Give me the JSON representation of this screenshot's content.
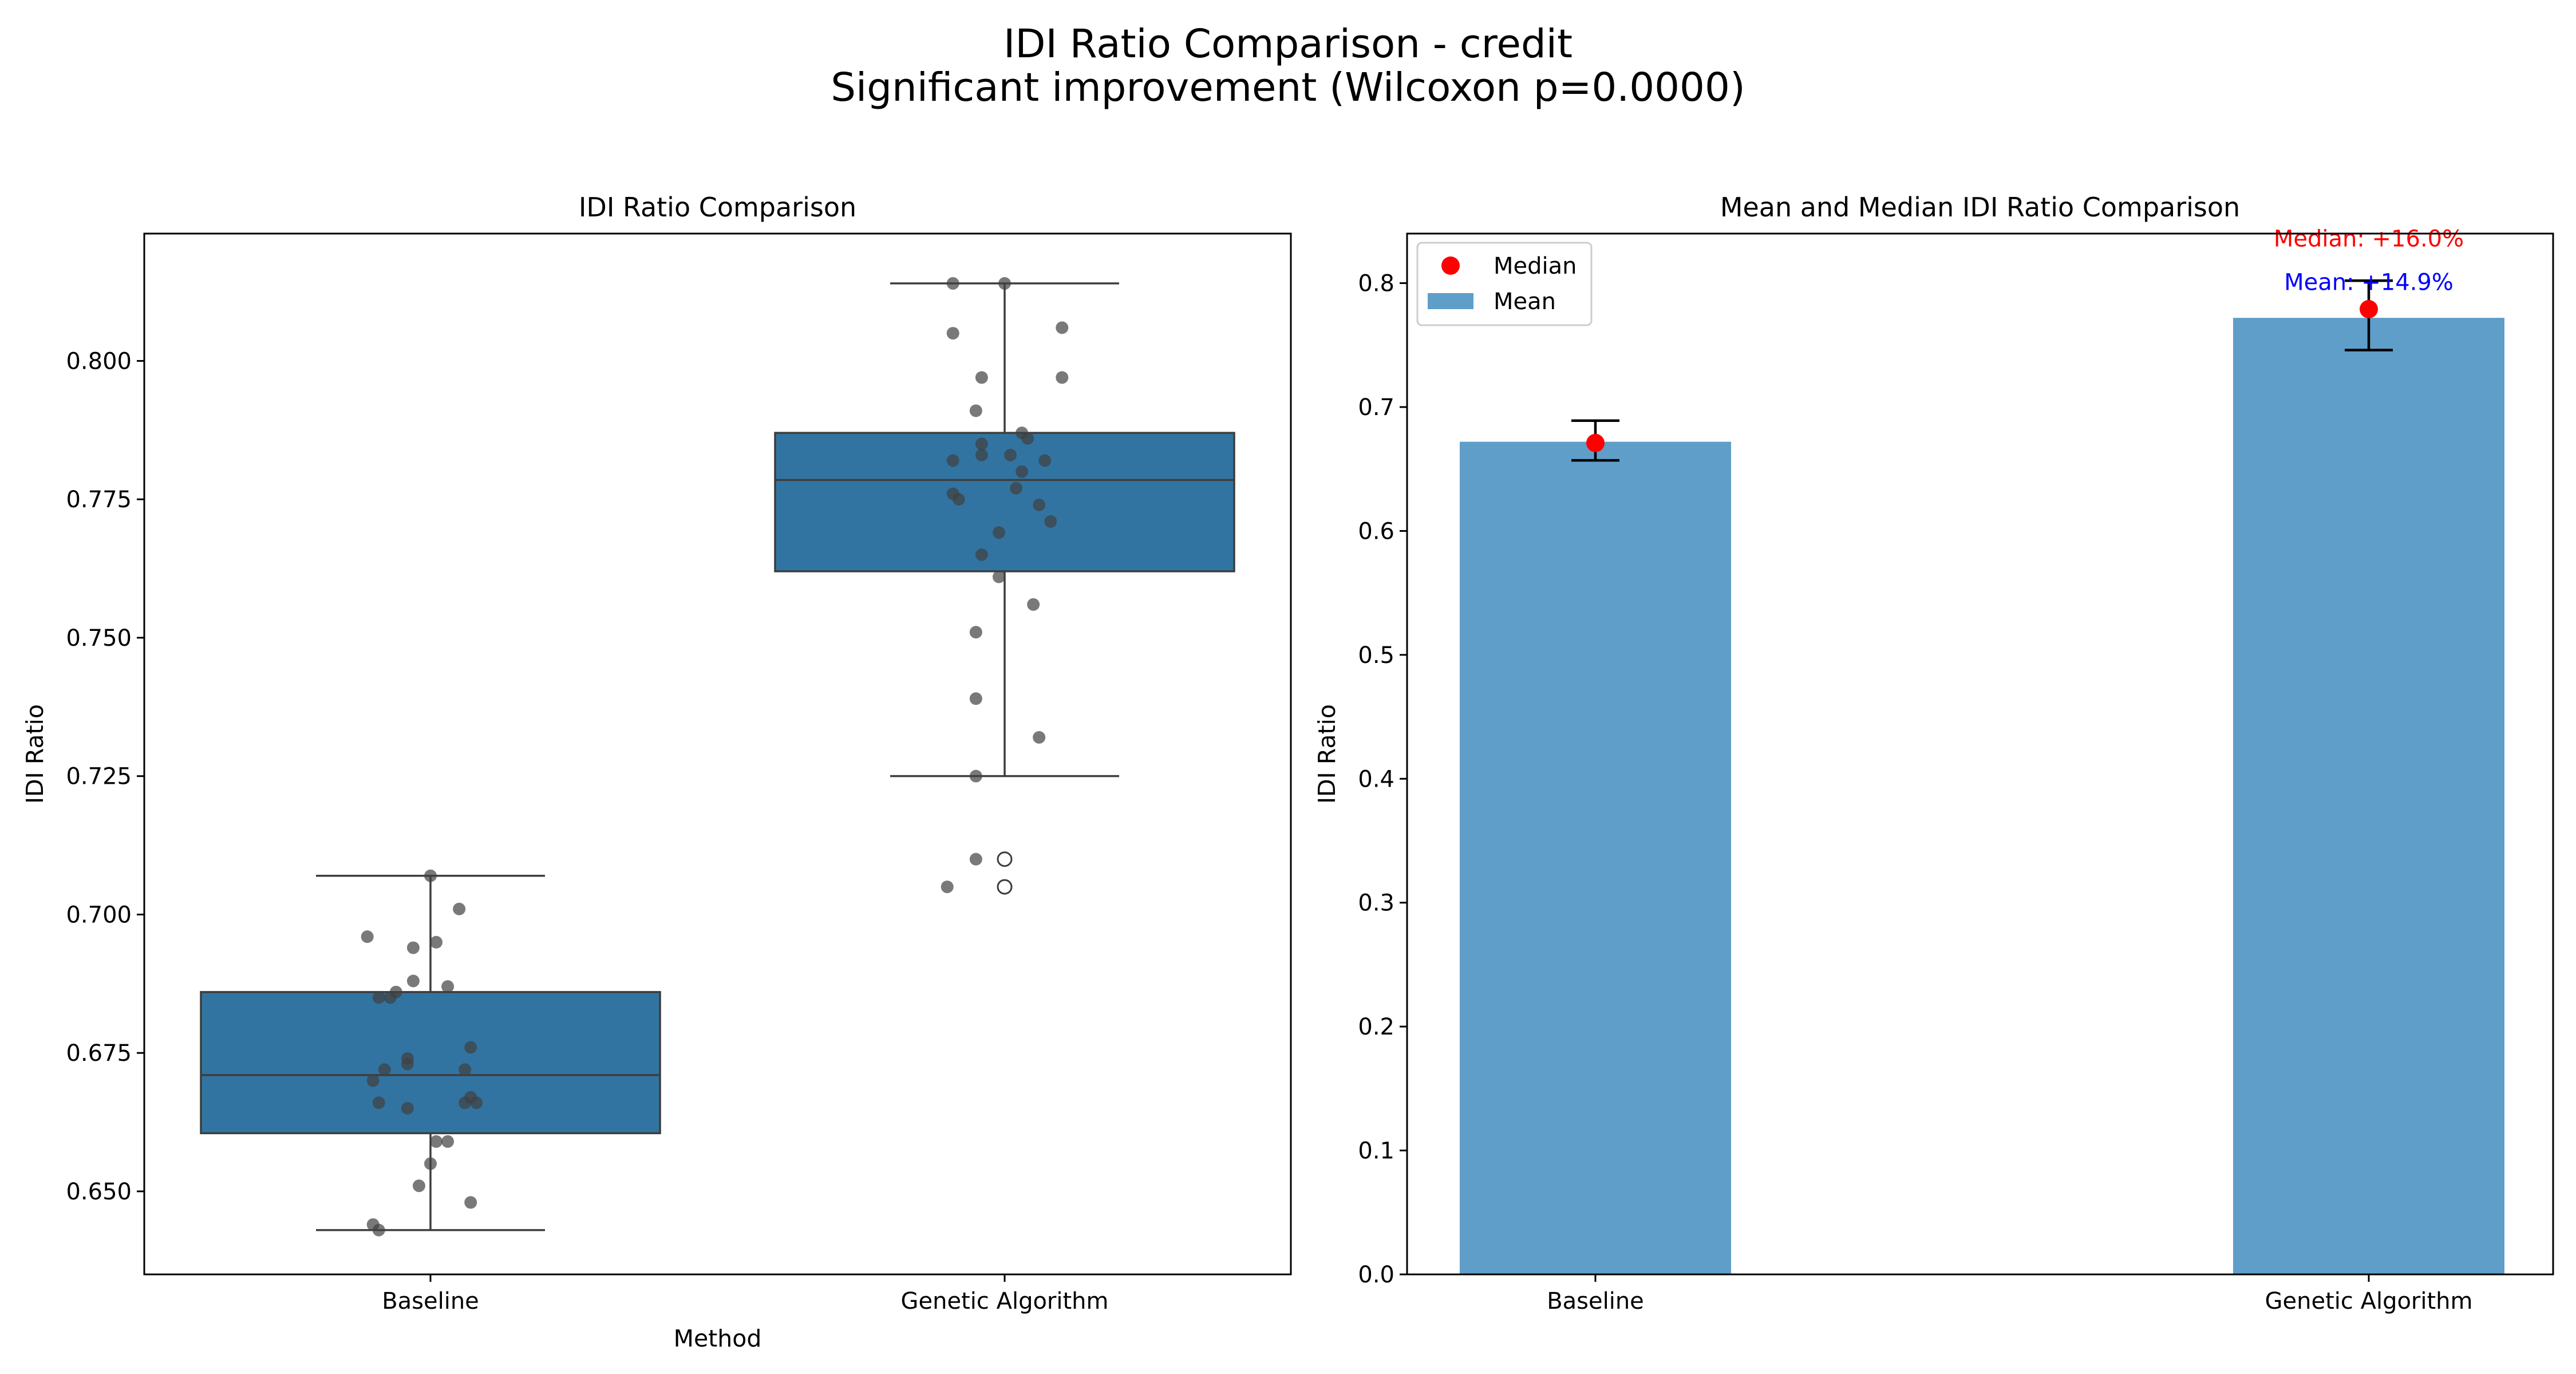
{
  "figure": {
    "suptitle_line1": "IDI Ratio Comparison - credit",
    "suptitle_line2": "Significant improvement (Wilcoxon p=0.0000)"
  },
  "chart_data": [
    {
      "type": "box",
      "title": "IDI Ratio Comparison",
      "xlabel": "Method",
      "ylabel": "IDI Ratio",
      "categories": [
        "Baseline",
        "Genetic Algorithm"
      ],
      "ylim": [
        0.635,
        0.823
      ],
      "yticks": [
        "0.650",
        "0.675",
        "0.700",
        "0.725",
        "0.750",
        "0.775",
        "0.800"
      ],
      "box_color": "#3274a1",
      "point_color": "#404040",
      "boxes": [
        {
          "category": "Baseline",
          "q1": 0.6605,
          "median": 0.671,
          "q3": 0.686,
          "whisker_low": 0.643,
          "whisker_high": 0.707,
          "outliers": [],
          "points": [
            {
              "dx": 0.0,
              "y": 0.707
            },
            {
              "dx": 0.05,
              "y": 0.701
            },
            {
              "dx": -0.11,
              "y": 0.696
            },
            {
              "dx": 0.01,
              "y": 0.695
            },
            {
              "dx": -0.03,
              "y": 0.694
            },
            {
              "dx": -0.03,
              "y": 0.688
            },
            {
              "dx": 0.03,
              "y": 0.687
            },
            {
              "dx": -0.06,
              "y": 0.686
            },
            {
              "dx": -0.09,
              "y": 0.685
            },
            {
              "dx": -0.07,
              "y": 0.685
            },
            {
              "dx": 0.07,
              "y": 0.676
            },
            {
              "dx": -0.04,
              "y": 0.674
            },
            {
              "dx": -0.04,
              "y": 0.673
            },
            {
              "dx": -0.08,
              "y": 0.672
            },
            {
              "dx": 0.06,
              "y": 0.672
            },
            {
              "dx": -0.1,
              "y": 0.67
            },
            {
              "dx": 0.07,
              "y": 0.667
            },
            {
              "dx": 0.06,
              "y": 0.666
            },
            {
              "dx": 0.08,
              "y": 0.666
            },
            {
              "dx": -0.09,
              "y": 0.666
            },
            {
              "dx": -0.04,
              "y": 0.665
            },
            {
              "dx": 0.01,
              "y": 0.659
            },
            {
              "dx": 0.03,
              "y": 0.659
            },
            {
              "dx": 0.0,
              "y": 0.655
            },
            {
              "dx": -0.02,
              "y": 0.651
            },
            {
              "dx": 0.07,
              "y": 0.648
            },
            {
              "dx": -0.1,
              "y": 0.644
            },
            {
              "dx": -0.09,
              "y": 0.643
            }
          ]
        },
        {
          "category": "Genetic Algorithm",
          "q1": 0.762,
          "median": 0.7785,
          "q3": 0.787,
          "whisker_low": 0.725,
          "whisker_high": 0.814,
          "outliers": [
            0.71,
            0.705
          ],
          "points": [
            {
              "dx": -0.09,
              "y": 0.814
            },
            {
              "dx": 0.0,
              "y": 0.814
            },
            {
              "dx": 0.1,
              "y": 0.806
            },
            {
              "dx": -0.09,
              "y": 0.805
            },
            {
              "dx": -0.04,
              "y": 0.797
            },
            {
              "dx": 0.1,
              "y": 0.797
            },
            {
              "dx": -0.05,
              "y": 0.791
            },
            {
              "dx": 0.03,
              "y": 0.787
            },
            {
              "dx": 0.04,
              "y": 0.786
            },
            {
              "dx": -0.04,
              "y": 0.785
            },
            {
              "dx": -0.04,
              "y": 0.783
            },
            {
              "dx": 0.01,
              "y": 0.783
            },
            {
              "dx": -0.09,
              "y": 0.782
            },
            {
              "dx": 0.07,
              "y": 0.782
            },
            {
              "dx": 0.03,
              "y": 0.78
            },
            {
              "dx": 0.02,
              "y": 0.777
            },
            {
              "dx": -0.09,
              "y": 0.776
            },
            {
              "dx": -0.08,
              "y": 0.775
            },
            {
              "dx": 0.06,
              "y": 0.774
            },
            {
              "dx": 0.08,
              "y": 0.771
            },
            {
              "dx": -0.01,
              "y": 0.769
            },
            {
              "dx": -0.04,
              "y": 0.765
            },
            {
              "dx": -0.01,
              "y": 0.761
            },
            {
              "dx": 0.05,
              "y": 0.756
            },
            {
              "dx": -0.05,
              "y": 0.751
            },
            {
              "dx": 0.06,
              "y": 0.732
            },
            {
              "dx": -0.05,
              "y": 0.739
            },
            {
              "dx": -0.05,
              "y": 0.725
            },
            {
              "dx": -0.05,
              "y": 0.71
            },
            {
              "dx": -0.1,
              "y": 0.705
            }
          ]
        }
      ]
    },
    {
      "type": "bar",
      "title": "Mean and Median IDI Ratio Comparison",
      "xlabel": "",
      "ylabel": "IDI Ratio",
      "categories": [
        "Baseline",
        "Genetic Algorithm"
      ],
      "ylim": [
        0.0,
        0.84
      ],
      "yticks": [
        "0.0",
        "0.1",
        "0.2",
        "0.3",
        "0.4",
        "0.5",
        "0.6",
        "0.7",
        "0.8"
      ],
      "bar_color": "#5f9ec9",
      "series": [
        {
          "name": "Mean",
          "values": [
            0.672,
            0.772
          ],
          "error": [
            [
              0.657,
              0.689
            ],
            [
              0.746,
              0.802
            ]
          ]
        },
        {
          "name": "Median",
          "values": [
            0.671,
            0.779
          ],
          "color": "#ff0000"
        }
      ],
      "annotations": [
        {
          "text": "Median: +16.0%",
          "category": "Genetic Algorithm",
          "y": 0.836,
          "color": "#ff0000"
        },
        {
          "text": "Mean: +14.9%",
          "category": "Genetic Algorithm",
          "y": 0.801,
          "color": "#0000ff"
        }
      ],
      "legend": {
        "position": "upper-left",
        "entries": [
          "Median",
          "Mean"
        ]
      }
    }
  ]
}
